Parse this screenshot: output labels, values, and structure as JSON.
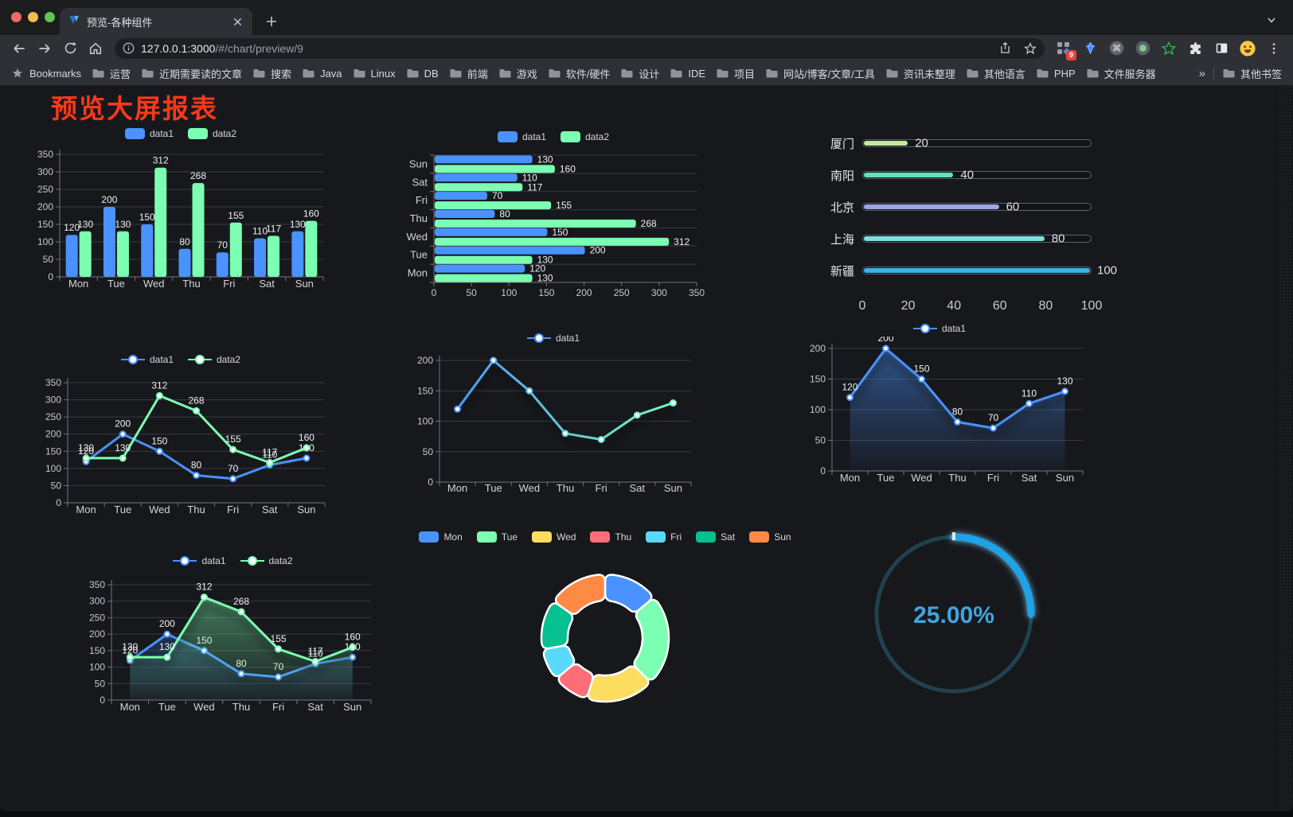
{
  "browser": {
    "tab": {
      "title": "预览-各种组件"
    },
    "url": {
      "host": "127.0.0.1:3000",
      "path": "/#/chart/preview/9"
    },
    "bookmarks_bar": {
      "bookmarks_label": "Bookmarks",
      "folders": [
        "运营",
        "近期需要读的文章",
        "搜索",
        "Java",
        "Linux",
        "DB",
        "前端",
        "游戏",
        "软件/硬件",
        "设计",
        "IDE",
        "项目",
        "网站/博客/文章/工具",
        "资讯未整理",
        "其他语言",
        "PHP",
        "文件服务器"
      ],
      "overflow": "»",
      "other_bookmarks": "其他书签"
    },
    "extension_badge": "9"
  },
  "page": {
    "title": "预览大屏报表",
    "title_color": "#fa3918"
  },
  "chart_data": [
    {
      "id": "bar-vertical",
      "type": "bar",
      "orientation": "vertical",
      "categories": [
        "Mon",
        "Tue",
        "Wed",
        "Thu",
        "Fri",
        "Sat",
        "Sun"
      ],
      "ylim": [
        0,
        350
      ],
      "ytick_step": 50,
      "value_labels": true,
      "grid": true,
      "legend_position": "top",
      "series": [
        {
          "name": "data1",
          "color": "#4992ff",
          "values": [
            120,
            200,
            150,
            80,
            70,
            110,
            130
          ]
        },
        {
          "name": "data2",
          "color": "#7cffb2",
          "values": [
            130,
            130,
            312,
            268,
            155,
            117,
            160
          ]
        }
      ]
    },
    {
      "id": "bar-horizontal",
      "type": "bar",
      "orientation": "horizontal",
      "categories": [
        "Mon",
        "Tue",
        "Wed",
        "Thu",
        "Fri",
        "Sat",
        "Sun"
      ],
      "xlim": [
        0,
        350
      ],
      "xtick_step": 50,
      "value_labels": true,
      "grid": true,
      "legend_position": "top",
      "series": [
        {
          "name": "data1",
          "color": "#4992ff",
          "values": [
            120,
            200,
            150,
            80,
            70,
            110,
            130
          ]
        },
        {
          "name": "data2",
          "color": "#7cffb2",
          "values": [
            130,
            130,
            312,
            268,
            155,
            117,
            160
          ]
        }
      ]
    },
    {
      "id": "city-progress",
      "type": "bar",
      "subtype": "progress-list",
      "xlim": [
        0,
        100
      ],
      "xticks": [
        0,
        20,
        40,
        60,
        80,
        100
      ],
      "rows": [
        {
          "label": "厦门",
          "value": 20,
          "color": "#c5e8a2"
        },
        {
          "label": "南阳",
          "value": 40,
          "color": "#63e2b7"
        },
        {
          "label": "北京",
          "value": 60,
          "color": "#9ba7e3"
        },
        {
          "label": "上海",
          "value": 80,
          "color": "#7de1de"
        },
        {
          "label": "新疆",
          "value": 100,
          "color": "#3fb1e3"
        }
      ]
    },
    {
      "id": "line-two-series",
      "type": "line",
      "categories": [
        "Mon",
        "Tue",
        "Wed",
        "Thu",
        "Fri",
        "Sat",
        "Sun"
      ],
      "ylim": [
        0,
        350
      ],
      "ytick_step": 50,
      "value_labels": true,
      "legend_position": "top",
      "series": [
        {
          "name": "data1",
          "color": "#4992ff",
          "values": [
            120,
            200,
            150,
            80,
            70,
            110,
            130
          ]
        },
        {
          "name": "data2",
          "color": "#7cffb2",
          "values": [
            130,
            130,
            312,
            268,
            155,
            117,
            160
          ]
        }
      ]
    },
    {
      "id": "line-gradient-single",
      "type": "line",
      "categories": [
        "Mon",
        "Tue",
        "Wed",
        "Thu",
        "Fri",
        "Sat",
        "Sun"
      ],
      "ylim": [
        0,
        200
      ],
      "ytick_step": 50,
      "value_labels": false,
      "legend_position": "top",
      "series": [
        {
          "name": "data1",
          "color": "#4992ff",
          "gradient": [
            "#4992ff",
            "#7cffb2"
          ],
          "values": [
            120,
            200,
            150,
            80,
            70,
            110,
            130
          ]
        }
      ]
    },
    {
      "id": "area-single",
      "type": "area",
      "categories": [
        "Mon",
        "Tue",
        "Wed",
        "Thu",
        "Fri",
        "Sat",
        "Sun"
      ],
      "ylim": [
        0,
        200
      ],
      "ytick_step": 50,
      "value_labels": true,
      "legend_position": "top",
      "series": [
        {
          "name": "data1",
          "color": "#4992ff",
          "values": [
            120,
            200,
            150,
            80,
            70,
            110,
            130
          ]
        }
      ]
    },
    {
      "id": "area-two-series",
      "type": "area",
      "categories": [
        "Mon",
        "Tue",
        "Wed",
        "Thu",
        "Fri",
        "Sat",
        "Sun"
      ],
      "ylim": [
        0,
        350
      ],
      "ytick_step": 50,
      "value_labels": true,
      "legend_position": "top",
      "series": [
        {
          "name": "data1",
          "color": "#4992ff",
          "values": [
            120,
            200,
            150,
            80,
            70,
            110,
            130
          ]
        },
        {
          "name": "data2",
          "color": "#7cffb2",
          "values": [
            130,
            130,
            312,
            268,
            155,
            117,
            160
          ]
        }
      ]
    },
    {
      "id": "weekday-donut",
      "type": "pie",
      "inner_radius_ratio": 0.59,
      "legend_position": "top",
      "labels": [
        "Mon",
        "Tue",
        "Wed",
        "Thu",
        "Fri",
        "Sat",
        "Sun"
      ],
      "values": [
        120,
        200,
        150,
        80,
        70,
        110,
        130
      ],
      "colors": [
        "#4992ff",
        "#7cffb2",
        "#fddd60",
        "#ff6e76",
        "#58d9f9",
        "#05c091",
        "#ff8a45"
      ]
    },
    {
      "id": "percent-gauge",
      "type": "gauge",
      "percent": 25,
      "display": "25.00%",
      "color": "#1aa3e8",
      "track_color": "#21414f",
      "text_color": "#3fa5e0"
    }
  ]
}
